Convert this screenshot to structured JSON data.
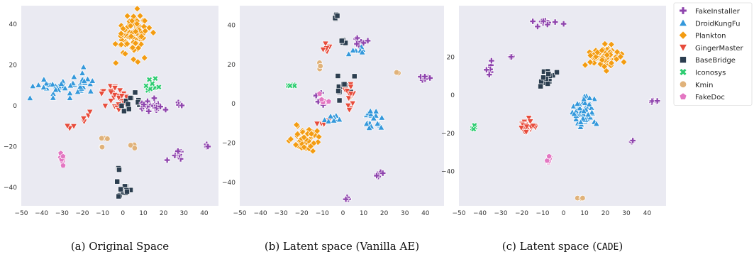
{
  "legend": {
    "entries": [
      {
        "name": "FakeInstaller",
        "color": "#8e44ad",
        "marker": "plus"
      },
      {
        "name": "DroidKungFu",
        "color": "#3498db",
        "marker": "triangle-up"
      },
      {
        "name": "Plankton",
        "color": "#f39c12",
        "marker": "diamond"
      },
      {
        "name": "GingerMaster",
        "color": "#e74c3c",
        "marker": "triangle-down"
      },
      {
        "name": "BaseBridge",
        "color": "#2c3e50",
        "marker": "square"
      },
      {
        "name": "Iconosys",
        "color": "#2ecc71",
        "marker": "x"
      },
      {
        "name": "Kmin",
        "color": "#e0b27a",
        "marker": "circle"
      },
      {
        "name": "FakeDoc",
        "color": "#e377c2",
        "marker": "pentagon"
      }
    ]
  },
  "chart_data": [
    {
      "type": "scatter",
      "caption": "(a) Original Space",
      "xlim": [
        -50,
        47
      ],
      "ylim": [
        -49,
        49
      ],
      "xticks": [
        -50,
        -40,
        -30,
        -20,
        -10,
        0,
        10,
        20,
        30,
        40
      ],
      "yticks": [
        -40,
        -20,
        0,
        20,
        40
      ],
      "grid": false,
      "clusters": [
        {
          "family": "Plankton",
          "cx": 5,
          "cy": 35,
          "sx": 5,
          "sy": 6,
          "n": 90
        },
        {
          "family": "DroidKungFu",
          "cx": -28,
          "cy": 9,
          "sx": 8,
          "sy": 3,
          "n": 40
        },
        {
          "family": "DroidKungFu",
          "cx": -18,
          "cy": 12,
          "sx": 3,
          "sy": 3,
          "n": 10
        },
        {
          "family": "GingerMaster",
          "cx": -5,
          "cy": 6,
          "sx": 4,
          "sy": 3,
          "n": 30
        },
        {
          "family": "GingerMaster",
          "cx": -18,
          "cy": -7,
          "sx": 2,
          "sy": 2,
          "n": 4
        },
        {
          "family": "GingerMaster",
          "cx": -26,
          "cy": -10,
          "sx": 1,
          "sy": 1,
          "n": 3
        },
        {
          "family": "BaseBridge",
          "cx": 5,
          "cy": 0,
          "sx": 3,
          "sy": 3,
          "n": 14
        },
        {
          "family": "BaseBridge",
          "cx": 0,
          "cy": -42,
          "sx": 2,
          "sy": 1.5,
          "n": 14
        },
        {
          "family": "BaseBridge",
          "cx": -2,
          "cy": -31,
          "sx": 0.5,
          "sy": 2.5,
          "n": 3
        },
        {
          "family": "Iconosys",
          "cx": 15,
          "cy": 9,
          "sx": 3,
          "sy": 2,
          "n": 10
        },
        {
          "family": "FakeInstaller",
          "cx": 15,
          "cy": 0,
          "sx": 6,
          "sy": 2,
          "n": 22
        },
        {
          "family": "FakeInstaller",
          "cx": 25,
          "cy": -24,
          "sx": 3,
          "sy": 1.5,
          "n": 12
        },
        {
          "family": "FakeInstaller",
          "cx": 42,
          "cy": -20,
          "sx": 0.7,
          "sy": 0.6,
          "n": 3
        },
        {
          "family": "FakeInstaller",
          "cx": 28,
          "cy": 0,
          "sx": 1,
          "sy": 1.5,
          "n": 4
        },
        {
          "family": "FakeDoc",
          "cx": -30,
          "cy": -27,
          "sx": 1,
          "sy": 2,
          "n": 8
        },
        {
          "family": "Kmin",
          "cx": -9,
          "cy": -18,
          "sx": 1,
          "sy": 2,
          "n": 5
        },
        {
          "family": "Kmin",
          "cx": 5,
          "cy": -20,
          "sx": 1,
          "sy": 0.6,
          "n": 3
        }
      ]
    },
    {
      "type": "scatter",
      "caption": "(b) Latent space (Vanilla AE)",
      "xlim": [
        -50,
        49
      ],
      "ylim": [
        -52,
        50
      ],
      "xticks": [
        -50,
        -40,
        -30,
        -20,
        -10,
        0,
        10,
        20,
        30,
        40
      ],
      "yticks": [
        -40,
        -20,
        0,
        20,
        40
      ],
      "grid": false,
      "clusters": [
        {
          "family": "Plankton",
          "cx": -18,
          "cy": -18,
          "sx": 4,
          "sy": 4,
          "n": 70
        },
        {
          "family": "Plankton",
          "cx": 4,
          "cy": 4,
          "sx": 0.8,
          "sy": 0.8,
          "n": 3
        },
        {
          "family": "BaseBridge",
          "cx": -3,
          "cy": 44,
          "sx": 0.6,
          "sy": 0.6,
          "n": 4
        },
        {
          "family": "BaseBridge",
          "cx": 0,
          "cy": 32,
          "sx": 0.8,
          "sy": 0.6,
          "n": 4
        },
        {
          "family": "BaseBridge",
          "cx": 1,
          "cy": 7,
          "sx": 3,
          "sy": 5,
          "n": 12
        },
        {
          "family": "FakeInstaller",
          "cx": 8,
          "cy": 31,
          "sx": 2,
          "sy": 2,
          "n": 9
        },
        {
          "family": "FakeInstaller",
          "cx": 40,
          "cy": 13,
          "sx": 2,
          "sy": 1,
          "n": 6
        },
        {
          "family": "FakeInstaller",
          "cx": 18,
          "cy": -36,
          "sx": 1,
          "sy": 2,
          "n": 5
        },
        {
          "family": "FakeInstaller",
          "cx": 2,
          "cy": -48,
          "sx": 0.5,
          "sy": 1.2,
          "n": 3
        },
        {
          "family": "FakeInstaller",
          "cx": -12,
          "cy": 2,
          "sx": 2,
          "sy": 2,
          "n": 6
        },
        {
          "family": "GingerMaster",
          "cx": -8,
          "cy": 28,
          "sx": 1,
          "sy": 2,
          "n": 5
        },
        {
          "family": "GingerMaster",
          "cx": 4,
          "cy": 3,
          "sx": 1.5,
          "sy": 4,
          "n": 15
        },
        {
          "family": "GingerMaster",
          "cx": -10,
          "cy": -10,
          "sx": 2,
          "sy": 2,
          "n": 5
        },
        {
          "family": "DroidKungFu",
          "cx": 7,
          "cy": 27,
          "sx": 2,
          "sy": 2,
          "n": 7
        },
        {
          "family": "DroidKungFu",
          "cx": 16,
          "cy": -8,
          "sx": 3,
          "sy": 3,
          "n": 20
        },
        {
          "family": "DroidKungFu",
          "cx": -3,
          "cy": -7,
          "sx": 3,
          "sy": 2,
          "n": 10
        },
        {
          "family": "Iconosys",
          "cx": -25,
          "cy": 9,
          "sx": 1.5,
          "sy": 0.6,
          "n": 6
        },
        {
          "family": "Kmin",
          "cx": 25,
          "cy": 16,
          "sx": 1,
          "sy": 0.4,
          "n": 2
        },
        {
          "family": "Kmin",
          "cx": -11,
          "cy": 18,
          "sx": 0.8,
          "sy": 2,
          "n": 3
        },
        {
          "family": "FakeDoc",
          "cx": -10,
          "cy": 2,
          "sx": 1.5,
          "sy": 2,
          "n": 6
        }
      ]
    },
    {
      "type": "scatter",
      "caption": "(c) Latent space (CADE)",
      "xlim": [
        -50,
        49
      ],
      "ylim": [
        -58,
        47
      ],
      "xticks": [
        -50,
        -40,
        -30,
        -20,
        -10,
        0,
        10,
        20,
        30,
        40
      ],
      "yticks": [
        -40,
        -20,
        0,
        20
      ],
      "grid": false,
      "clusters": [
        {
          "family": "Plankton",
          "cx": 19,
          "cy": 20,
          "sx": 4,
          "sy": 3,
          "n": 70
        },
        {
          "family": "DroidKungFu",
          "cx": 9,
          "cy": -9,
          "sx": 3,
          "sy": 5,
          "n": 50
        },
        {
          "family": "BaseBridge",
          "cx": -8,
          "cy": 9,
          "sx": 2,
          "sy": 3,
          "n": 14
        },
        {
          "family": "GingerMaster",
          "cx": -17,
          "cy": -17,
          "sx": 2,
          "sy": 2,
          "n": 30
        },
        {
          "family": "FakeInstaller",
          "cx": -10,
          "cy": 38,
          "sx": 4,
          "sy": 2,
          "n": 12
        },
        {
          "family": "FakeInstaller",
          "cx": -35,
          "cy": 13,
          "sx": 1.5,
          "sy": 4,
          "n": 8
        },
        {
          "family": "FakeInstaller",
          "cx": -25,
          "cy": 20,
          "sx": 0.6,
          "sy": 0.6,
          "n": 3
        },
        {
          "family": "FakeInstaller",
          "cx": 43,
          "cy": -3,
          "sx": 1.5,
          "sy": 1,
          "n": 6
        },
        {
          "family": "FakeInstaller",
          "cx": 33,
          "cy": -24,
          "sx": 0.4,
          "sy": 0.4,
          "n": 2
        },
        {
          "family": "Iconosys",
          "cx": -43,
          "cy": -16,
          "sx": 0.7,
          "sy": 1,
          "n": 6
        },
        {
          "family": "FakeDoc",
          "cx": -7,
          "cy": -33,
          "sx": 1,
          "sy": 1.5,
          "n": 6
        },
        {
          "family": "Kmin",
          "cx": 8,
          "cy": -54,
          "sx": 1.2,
          "sy": 0.5,
          "n": 3
        }
      ]
    }
  ]
}
